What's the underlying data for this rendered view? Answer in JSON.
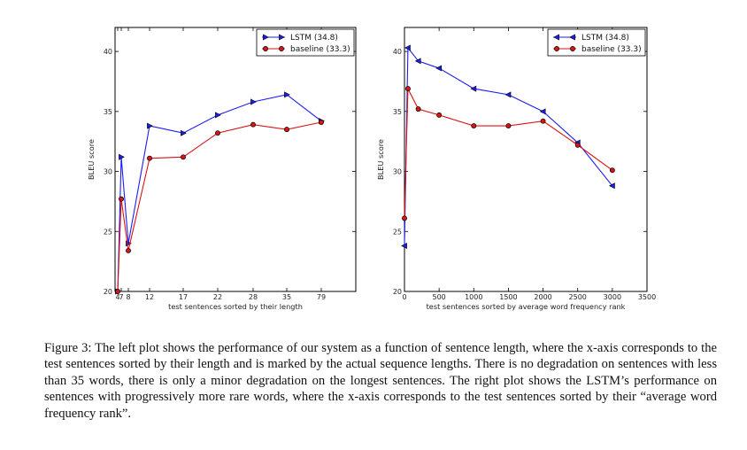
{
  "colors": {
    "lstm": "#1d1df2",
    "baseline": "#d91414",
    "axis": "#000000"
  },
  "chart_data": [
    {
      "type": "line",
      "x_categories": [
        "4",
        "7",
        "8",
        "12",
        "17",
        "22",
        "28",
        "35",
        "79"
      ],
      "xlabel": "test sentences sorted by their length",
      "ylabel": "BLEU score",
      "ylim": [
        20,
        42
      ],
      "yticks": [
        20,
        25,
        30,
        35,
        40
      ],
      "legend_placement": "top-right",
      "series": [
        {
          "name": "LSTM (34.8)",
          "marker": "right-triangle",
          "points": [
            [
              4,
              20.0
            ],
            [
              7,
              31.2
            ],
            [
              8,
              24.0
            ],
            [
              12,
              33.8
            ],
            [
              17,
              33.2
            ],
            [
              22,
              34.7
            ],
            [
              28,
              35.8
            ],
            [
              35,
              36.4
            ],
            [
              79,
              34.2
            ]
          ]
        },
        {
          "name": "baseline (33.3)",
          "marker": "circle",
          "points": [
            [
              4,
              20.0
            ],
            [
              7,
              27.7
            ],
            [
              8,
              23.4
            ],
            [
              12,
              31.1
            ],
            [
              17,
              31.2
            ],
            [
              22,
              33.2
            ],
            [
              28,
              33.9
            ],
            [
              35,
              33.5
            ],
            [
              79,
              34.1
            ]
          ]
        }
      ]
    },
    {
      "type": "line",
      "xlabel": "test sentences sorted by average word frequency rank",
      "ylabel": "BLEU score",
      "xlim": [
        0,
        3500
      ],
      "ylim": [
        20,
        42
      ],
      "xticks": [
        0,
        500,
        1000,
        1500,
        2000,
        2500,
        3000,
        3500
      ],
      "yticks": [
        20,
        25,
        30,
        35,
        40
      ],
      "legend_placement": "top-right",
      "series": [
        {
          "name": "LSTM (34.8)",
          "marker": "left-triangle",
          "points": [
            [
              0,
              23.8
            ],
            [
              50,
              40.3
            ],
            [
              200,
              39.2
            ],
            [
              500,
              38.6
            ],
            [
              1000,
              36.9
            ],
            [
              1500,
              36.4
            ],
            [
              2000,
              35.0
            ],
            [
              2500,
              32.4
            ],
            [
              3000,
              28.8
            ]
          ]
        },
        {
          "name": "baseline (33.3)",
          "marker": "circle",
          "points": [
            [
              0,
              26.1
            ],
            [
              50,
              36.9
            ],
            [
              200,
              35.2
            ],
            [
              500,
              34.7
            ],
            [
              1000,
              33.8
            ],
            [
              1500,
              33.8
            ],
            [
              2000,
              34.2
            ],
            [
              2500,
              32.2
            ],
            [
              3000,
              30.1
            ]
          ]
        }
      ]
    }
  ],
  "caption": "Figure 3: The left plot shows the performance of our system as a function of sentence length, where the x-axis corresponds to the test sentences sorted by their length and is marked by the actual sequence lengths. There is no degradation on sentences with less than 35 words, there is only a minor degradation on the longest sentences. The right plot shows the LSTM’s performance on sentences with progressively more rare words, where the x-axis corresponds to the test sentences sorted by their “average word frequency rank”."
}
